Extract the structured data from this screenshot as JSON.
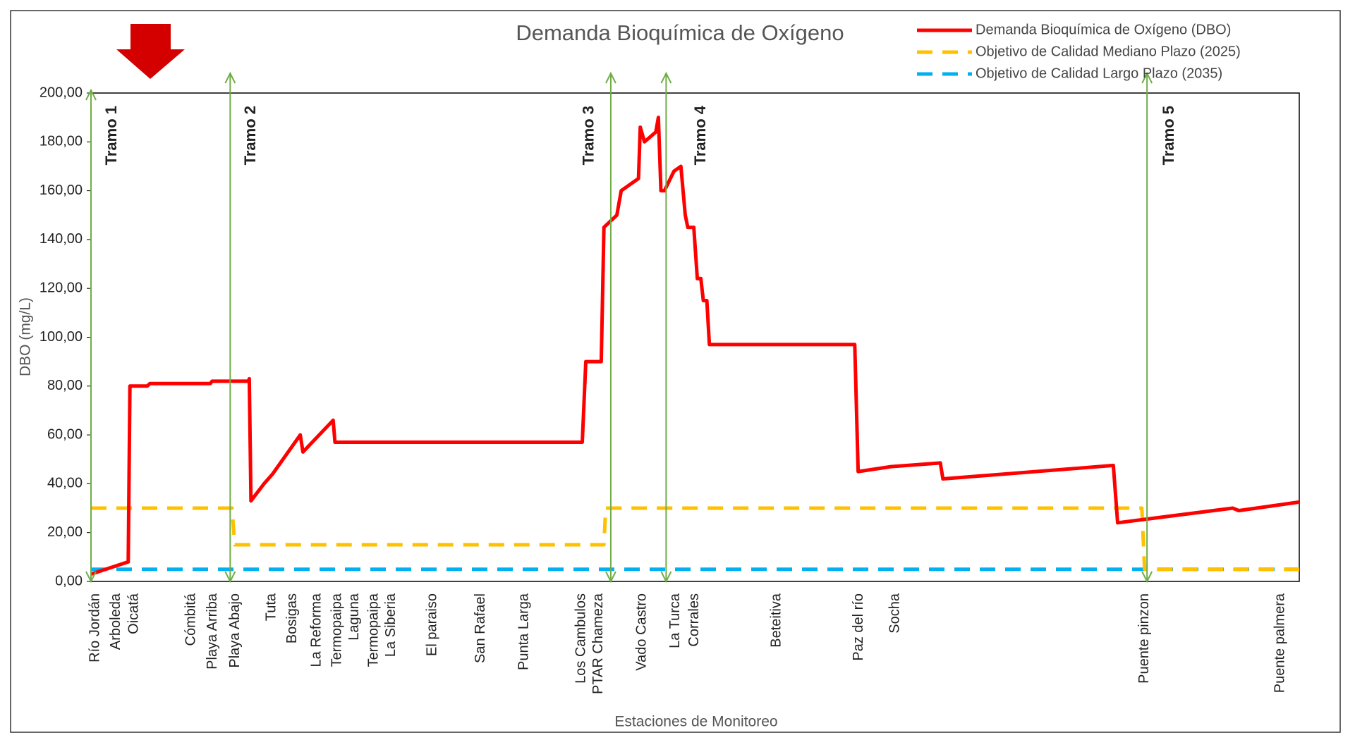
{
  "chart_data": {
    "type": "line",
    "title": "Demanda Bioquímica de Oxígeno",
    "ylabel": "DBO (mg/L)",
    "xlabel": "Estaciones de Monitoreo",
    "xlim": [
      0,
      100
    ],
    "ylim": [
      0,
      200
    ],
    "yticks": [
      {
        "value": 0,
        "label": "0,00"
      },
      {
        "value": 20,
        "label": "20,00"
      },
      {
        "value": 40,
        "label": "40,00"
      },
      {
        "value": 60,
        "label": "60,00"
      },
      {
        "value": 80,
        "label": "80,00"
      },
      {
        "value": 100,
        "label": "100,00"
      },
      {
        "value": 120,
        "label": "120,00"
      },
      {
        "value": 140,
        "label": "140,00"
      },
      {
        "value": 160,
        "label": "160,00"
      },
      {
        "value": 180,
        "label": "180,00"
      },
      {
        "value": 200,
        "label": "200,00"
      }
    ],
    "stations": {
      "names": [
        "Río Jordán",
        "Arboleda",
        "Oicatá",
        "Cómbitá",
        "Playa Arriba",
        "Playa Abajo",
        "Tuta",
        "Bosigas",
        "La Reforma",
        "Termopaipa",
        "Laguna",
        "Termopaipa",
        "La Siberia",
        "El paraiso",
        "San Rafael",
        "Punta Larga",
        "Los Cambulos",
        "PTAR Chameza",
        "Vado Castro",
        "La Turca",
        "Corrales",
        "Beteitiva",
        "Paz del río",
        "Socha",
        "Puente pinzon",
        "Puente palmera"
      ],
      "x": [
        0.36,
        2.08,
        3.58,
        8.3,
        10.09,
        11.95,
        14.96,
        16.68,
        18.68,
        20.4,
        21.83,
        23.41,
        24.84,
        28.27,
        32.28,
        35.86,
        40.59,
        42.02,
        45.6,
        48.39,
        49.96,
        56.76,
        63.56,
        66.57,
        87.19,
        98.43
      ]
    },
    "tramos": {
      "labels": [
        "Tramo 1",
        "Tramo 2",
        "Tramo 3",
        "Tramo 4",
        "Tramo 5"
      ],
      "x": [
        0,
        11.52,
        43.02,
        47.6,
        87.4
      ],
      "color": "#70ad47"
    },
    "series": [
      {
        "name": "Demanda Bioquímica de Oxígeno (DBO)",
        "color": "#ff0000",
        "dash": false,
        "x": [
          0,
          3.08,
          3.22,
          4.65,
          4.87,
          9.88,
          10.02,
          13.03,
          13.1,
          13.24,
          14.32,
          15.03,
          17.32,
          17.54,
          20.04,
          20.19,
          40.66,
          40.95,
          42.23,
          42.45,
          43.52,
          43.88,
          45.31,
          45.46,
          45.81,
          46.74,
          46.96,
          47.17,
          47.46,
          48.25,
          48.82,
          49.18,
          49.39,
          49.89,
          50.18,
          50.47,
          50.68,
          50.97,
          51.18,
          63.21,
          63.49,
          66.21,
          70.29,
          70.51,
          84.61,
          84.97,
          94.49,
          95.0,
          100
        ],
        "values": [
          3,
          8,
          80,
          80,
          81,
          81,
          82,
          82,
          83,
          33,
          40,
          44,
          60,
          53,
          66,
          57,
          57,
          90,
          90,
          145,
          150,
          160,
          165,
          186,
          180,
          184,
          190,
          160,
          160,
          168,
          170,
          150,
          145,
          145,
          124,
          124,
          115,
          115,
          97,
          97,
          45,
          47,
          48.5,
          42,
          47.5,
          24,
          30,
          29,
          32.5
        ]
      },
      {
        "name": "Objetivo de Calidad Mediano Plazo (2025)",
        "color": "#ffc000",
        "dash": true,
        "x": [
          0,
          11.67,
          11.9,
          42.45,
          42.6,
          86.97,
          87.2,
          100
        ],
        "values": [
          30,
          30,
          15,
          15,
          30,
          30,
          5,
          5
        ]
      },
      {
        "name": "Objetivo de Calidad Largo Plazo (2035)",
        "color": "#00b0f0",
        "dash": true,
        "x": [
          0,
          100
        ],
        "values": [
          5,
          5
        ]
      }
    ]
  }
}
